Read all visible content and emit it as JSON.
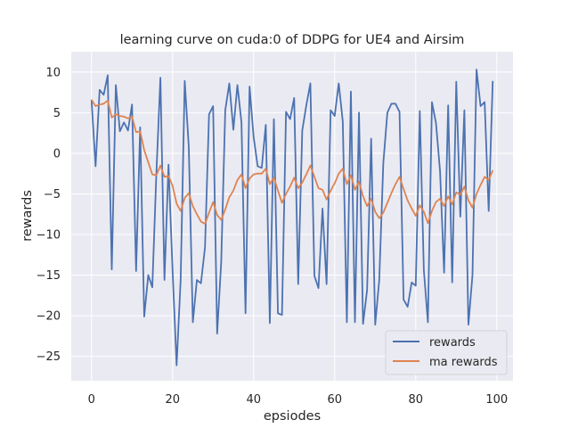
{
  "chart_data": {
    "type": "line",
    "title": "learning curve on cuda:0 of DDPG for UE4 and Airsim",
    "xlabel": "epsiodes",
    "ylabel": "rewards",
    "xlim": [
      -5,
      104
    ],
    "ylim": [
      -28,
      12.5
    ],
    "x_ticks": [
      0,
      20,
      40,
      60,
      80,
      100
    ],
    "y_ticks": [
      10,
      5,
      0,
      -5,
      -10,
      -15,
      -20,
      -25
    ],
    "grid": true,
    "background": "#eaeaf2",
    "legend_position": "lower-right",
    "series": [
      {
        "name": "rewards",
        "color": "#4c72b0",
        "values": [
          6.6,
          -1.6,
          7.8,
          7.2,
          9.6,
          -14.3,
          8.4,
          2.7,
          3.8,
          2.8,
          6.0,
          -14.5,
          3.2,
          -20.1,
          -15.0,
          -16.5,
          -2.5,
          9.3,
          -15.6,
          -1.4,
          -14.4,
          -26.1,
          -15.5,
          8.9,
          0.8,
          -20.8,
          -15.6,
          -16.0,
          -11.6,
          4.8,
          5.8,
          -22.2,
          -13.4,
          5.3,
          8.6,
          2.9,
          8.4,
          3.8,
          -19.7,
          8.2,
          2.0,
          -1.6,
          -1.8,
          3.5,
          -20.9,
          4.2,
          -19.7,
          -19.9,
          5.1,
          4.2,
          6.8,
          -16.1,
          2.8,
          5.9,
          8.6,
          -15.1,
          -16.6,
          -6.8,
          -16.1,
          5.3,
          4.6,
          8.6,
          3.9,
          -20.8,
          7.6,
          -20.8,
          5.0,
          -21.0,
          -16.8,
          1.8,
          -21.1,
          -15.6,
          -1.2,
          5.0,
          6.1,
          6.1,
          5.1,
          -18.0,
          -18.9,
          -15.9,
          -16.3,
          5.2,
          -14.4,
          -20.8,
          6.3,
          3.7,
          -2.2,
          -14.7,
          5.9,
          -15.9,
          8.8,
          -7.8,
          5.3,
          -21.1,
          -15.0,
          10.3,
          5.8,
          6.3,
          -7.1,
          8.9
        ]
      },
      {
        "name": "ma rewards",
        "color": "#dd8452",
        "values": [
          6.6,
          5.8,
          6.0,
          6.1,
          6.5,
          4.4,
          4.8,
          4.6,
          4.5,
          4.3,
          4.5,
          2.6,
          2.7,
          0.4,
          -1.1,
          -2.6,
          -2.7,
          -1.5,
          -2.9,
          -2.8,
          -4.0,
          -6.2,
          -7.1,
          -5.5,
          -4.9,
          -6.5,
          -7.5,
          -8.4,
          -8.7,
          -7.3,
          -6.0,
          -7.6,
          -8.2,
          -6.9,
          -5.4,
          -4.6,
          -3.3,
          -2.6,
          -4.3,
          -3.1,
          -2.6,
          -2.5,
          -2.5,
          -1.9,
          -3.8,
          -3.0,
          -4.6,
          -6.1,
          -5.0,
          -4.1,
          -3.0,
          -4.3,
          -3.6,
          -2.6,
          -1.5,
          -2.9,
          -4.3,
          -4.5,
          -5.7,
          -4.6,
          -3.7,
          -2.5,
          -1.9,
          -3.8,
          -2.7,
          -4.5,
          -3.5,
          -5.3,
          -6.5,
          -5.6,
          -7.2,
          -8.0,
          -7.3,
          -6.1,
          -4.9,
          -3.8,
          -2.9,
          -4.4,
          -5.8,
          -6.8,
          -7.7,
          -6.4,
          -7.2,
          -8.6,
          -7.1,
          -6.0,
          -5.6,
          -6.5,
          -5.3,
          -6.3,
          -4.8,
          -5.1,
          -4.1,
          -5.8,
          -6.7,
          -5.0,
          -3.9,
          -2.9,
          -3.3,
          -2.1
        ]
      }
    ]
  }
}
